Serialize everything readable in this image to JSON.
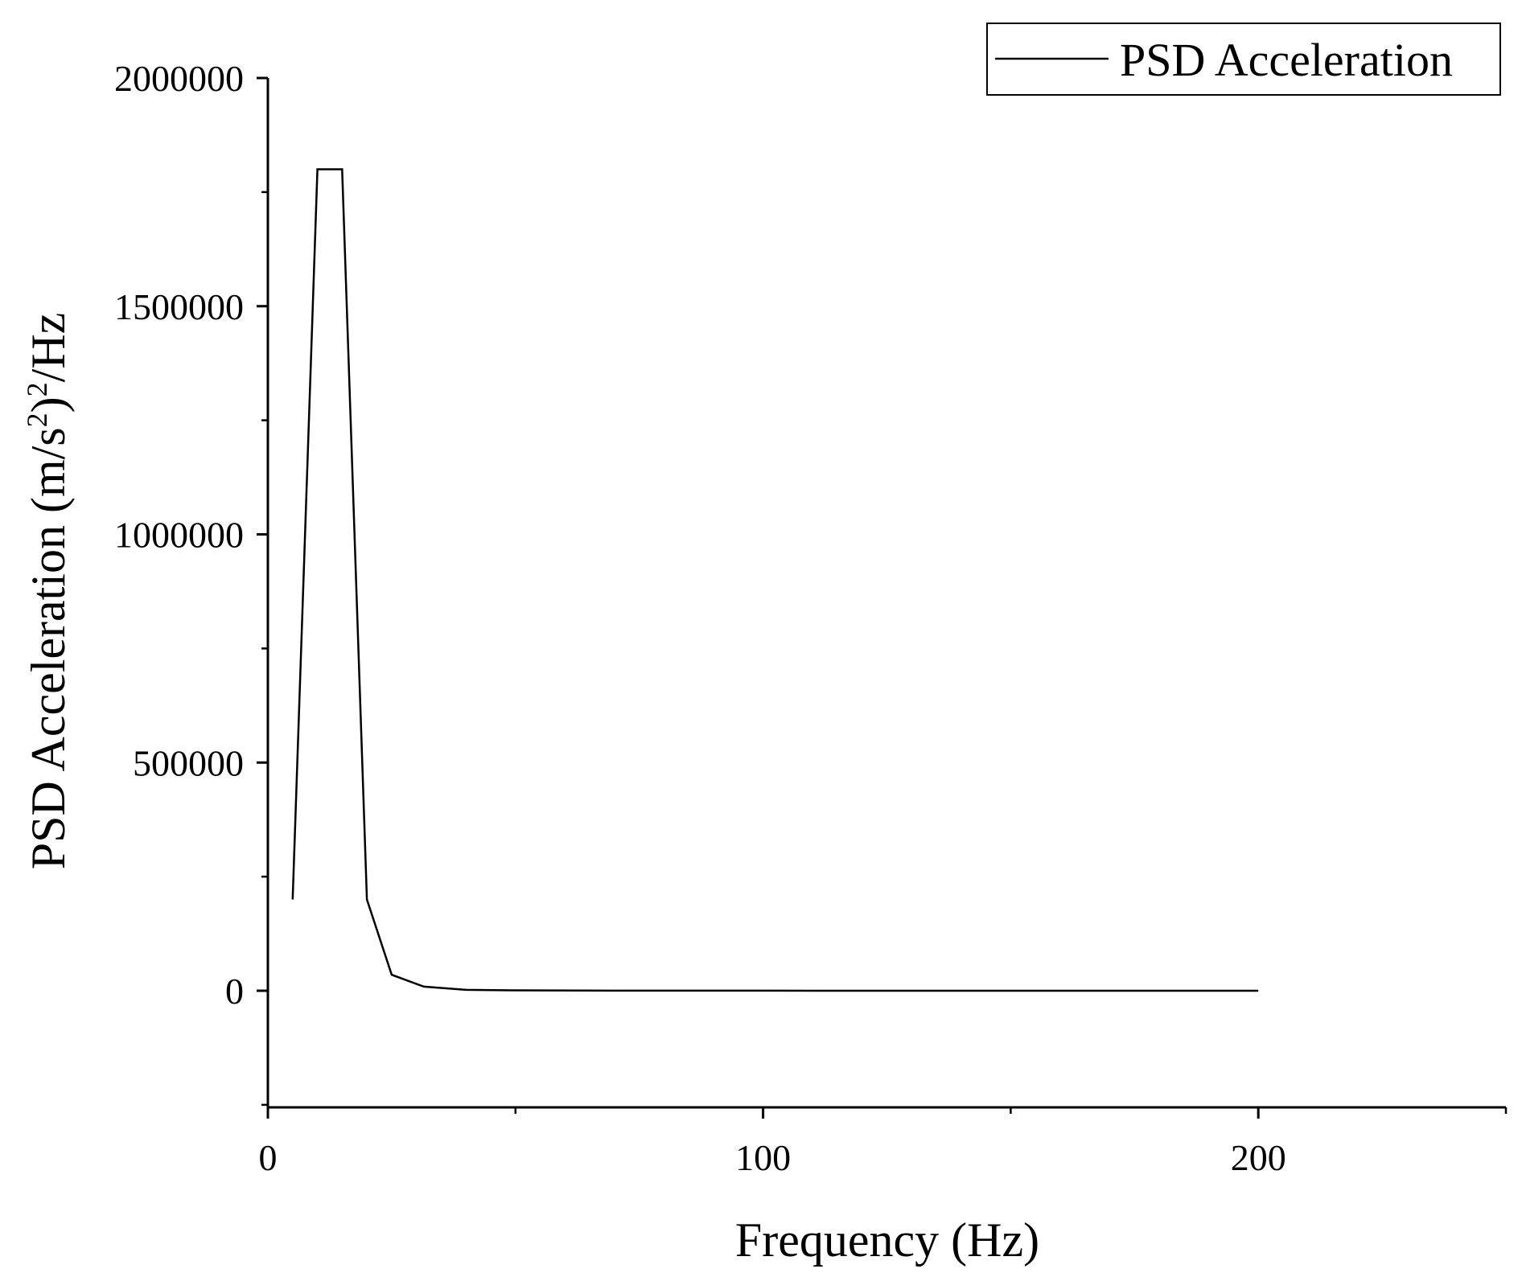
{
  "chart_data": {
    "type": "line",
    "xlabel": "Frequency (Hz)",
    "ylabel": {
      "prefix": "PSD Acceleration (m/s",
      "sup1": "2",
      "mid": ")",
      "sup2": "2",
      "suffix": "/Hz"
    },
    "xlim": [
      0,
      250
    ],
    "ylim": [
      -250000,
      2000000
    ],
    "x_ticks": [
      0,
      100,
      200
    ],
    "x_minor_ticks": [
      50,
      150,
      250
    ],
    "y_ticks": [
      0,
      500000,
      1000000,
      1500000,
      2000000
    ],
    "x_tick_labels": [
      "0",
      "100",
      "200"
    ],
    "y_tick_labels": [
      "0",
      "500000",
      "1000000",
      "1500000",
      "2000000"
    ],
    "legend_position": "top-right",
    "grid": false,
    "series": [
      {
        "name": "PSD Acceleration",
        "color": "#000000",
        "x": [
          5,
          10,
          15,
          20,
          25,
          31.5,
          40,
          50,
          63,
          80,
          100,
          125,
          160,
          200
        ],
        "y": [
          200000,
          1800000,
          1800000,
          200000,
          35000,
          9000,
          2000,
          900,
          400,
          200,
          100,
          60,
          30,
          20
        ]
      }
    ]
  }
}
